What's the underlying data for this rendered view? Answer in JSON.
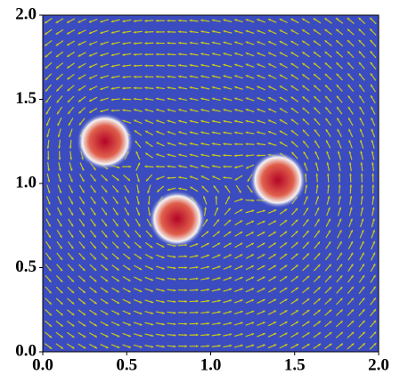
{
  "chart_data": {
    "type": "quiver",
    "xlim": [
      0,
      2
    ],
    "ylim": [
      0,
      2
    ],
    "xticks": [
      {
        "value": 0,
        "label": "0.0"
      },
      {
        "value": 0.5,
        "label": "0.5"
      },
      {
        "value": 1,
        "label": "1.0"
      },
      {
        "value": 1.5,
        "label": "1.5"
      },
      {
        "value": 2,
        "label": "2.0"
      }
    ],
    "yticks": [
      {
        "value": 0,
        "label": "0.0"
      },
      {
        "value": 0.5,
        "label": "0.5"
      },
      {
        "value": 1,
        "label": "1.0"
      },
      {
        "value": 1.5,
        "label": "1.5"
      },
      {
        "value": 2,
        "label": "2.0"
      }
    ],
    "blobs": [
      {
        "x": 0.37,
        "y": 1.25,
        "radius": 0.17
      },
      {
        "x": 0.8,
        "y": 0.79,
        "radius": 0.17
      },
      {
        "x": 1.4,
        "y": 1.02,
        "radius": 0.17
      }
    ],
    "colors": {
      "background": "#3b4cc0",
      "core": "#b40426",
      "mid": "#e0604c",
      "edge": "#f4f4f4",
      "arrow": "#c9c816"
    }
  }
}
